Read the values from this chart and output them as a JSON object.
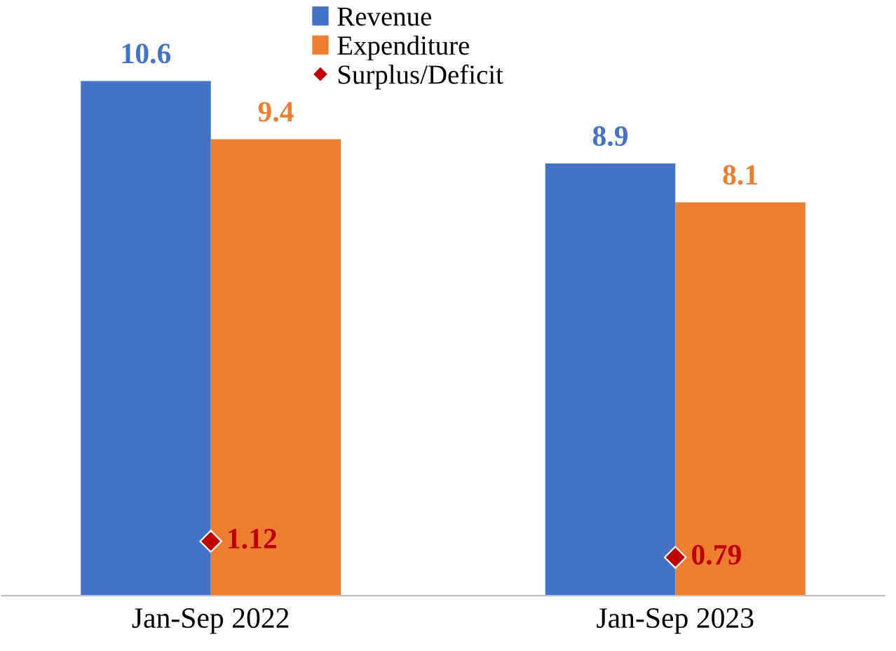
{
  "chart_data": {
    "type": "bar",
    "categories": [
      "Jan-Sep 2022",
      "Jan-Sep 2023"
    ],
    "series": [
      {
        "name": "Revenue",
        "color": "#4472c4",
        "values": [
          10.6,
          8.9
        ]
      },
      {
        "name": "Expenditure",
        "color": "#ed7d31",
        "values": [
          9.4,
          8.1
        ]
      },
      {
        "name": "Surplus/Deficit",
        "type": "scatter",
        "color": "#c00000",
        "values": [
          1.12,
          0.79
        ],
        "marker": "diamond"
      }
    ],
    "data_labels": true,
    "legend": "top",
    "grid": false,
    "tick_labels": "x"
  }
}
